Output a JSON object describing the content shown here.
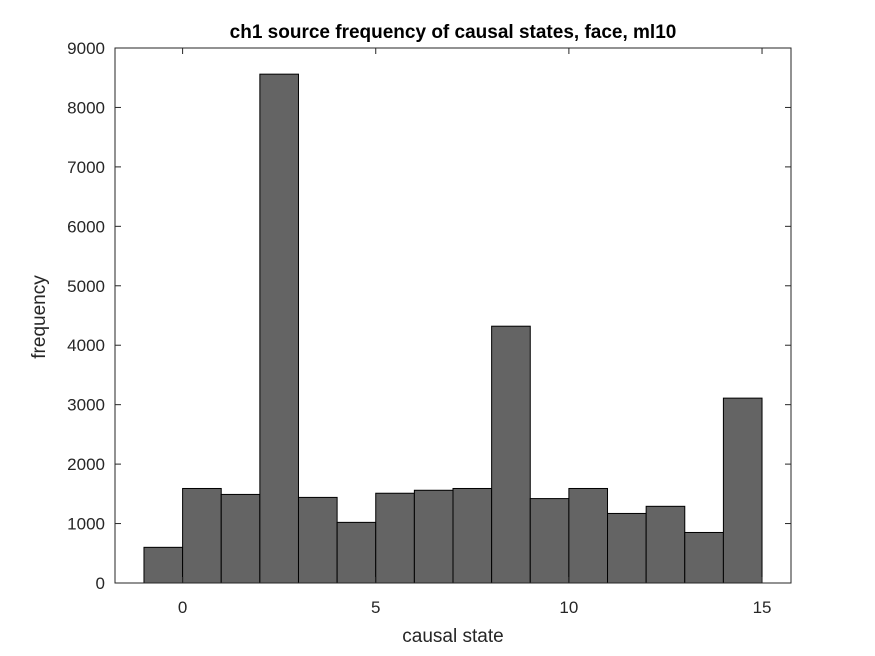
{
  "chart_data": {
    "type": "bar",
    "title": "ch1 source frequency of causal states, face, ml10",
    "xlabel": "causal state",
    "ylabel": "frequency",
    "bin_edges": [
      -1,
      0,
      1,
      2,
      3,
      4,
      5,
      6,
      7,
      8,
      9,
      10,
      11,
      12,
      13,
      14,
      15
    ],
    "values": [
      600,
      1590,
      1490,
      8560,
      1440,
      1020,
      1510,
      1560,
      1590,
      4320,
      1420,
      1590,
      1170,
      1290,
      850,
      3110
    ],
    "xlim": [
      -1.75,
      15.75
    ],
    "ylim": [
      0,
      9000
    ],
    "xticks": [
      0,
      5,
      10,
      15
    ],
    "yticks": [
      0,
      1000,
      2000,
      3000,
      4000,
      5000,
      6000,
      7000,
      8000,
      9000
    ],
    "bar_color": "#646464",
    "grid": false
  }
}
